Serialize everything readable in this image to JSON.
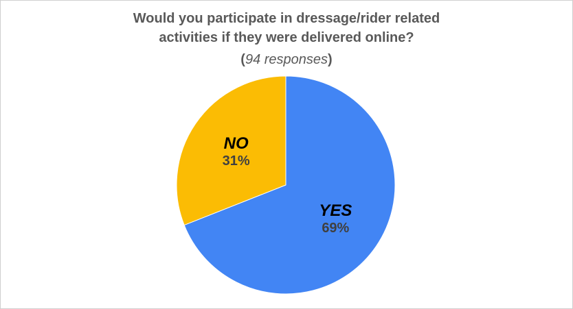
{
  "chart_data": {
    "type": "pie",
    "title_line1": "Would you participate in dressage/rider related",
    "title_line2": "activities if they were delivered online?",
    "subtitle": {
      "open": "(",
      "count": "94 responses",
      "close": ")"
    },
    "categories": [
      "YES",
      "NO"
    ],
    "values": [
      69,
      31
    ],
    "labels": [
      "69%",
      "31%"
    ],
    "colors": [
      "#4285F4",
      "#FBBC04"
    ]
  }
}
